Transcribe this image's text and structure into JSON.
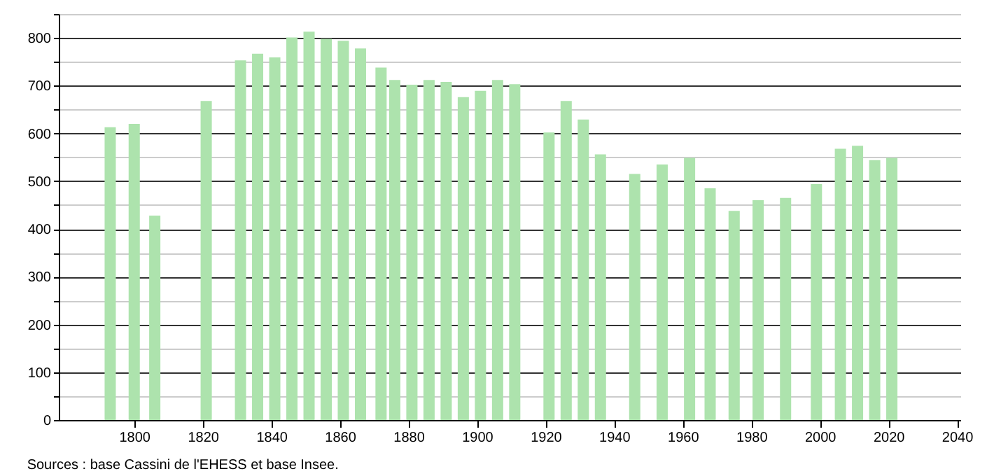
{
  "chart_data": {
    "type": "bar",
    "x": [
      1793,
      1800,
      1806,
      1821,
      1831,
      1836,
      1841,
      1846,
      1851,
      1856,
      1861,
      1866,
      1872,
      1876,
      1881,
      1886,
      1891,
      1896,
      1901,
      1906,
      1911,
      1921,
      1926,
      1931,
      1936,
      1946,
      1954,
      1962,
      1968,
      1975,
      1982,
      1990,
      1999,
      2006,
      2011,
      2016,
      2021
    ],
    "values": [
      613,
      620,
      428,
      668,
      753,
      767,
      759,
      801,
      813,
      798,
      794,
      778,
      738,
      712,
      702,
      712,
      708,
      676,
      689,
      712,
      703,
      602,
      668,
      629,
      556,
      515,
      535,
      549,
      485,
      438,
      460,
      465,
      494,
      568,
      574,
      544,
      549
    ],
    "color": "#ade3ad",
    "xlim": [
      1778,
      2041
    ],
    "xticks": [
      1800,
      1820,
      1840,
      1860,
      1880,
      1900,
      1920,
      1940,
      1960,
      1980,
      2000,
      2020,
      2040
    ],
    "ylim": [
      0,
      850
    ],
    "yticks": [
      0,
      {
        "value": 50,
        "label": null
      },
      100,
      {
        "value": 150,
        "label": null
      },
      200,
      {
        "value": 250,
        "label": null
      },
      300,
      {
        "value": 350,
        "label": null
      },
      400,
      {
        "value": 450,
        "label": null
      },
      500,
      {
        "value": 550,
        "label": null
      },
      600,
      {
        "value": 650,
        "label": null
      },
      700,
      {
        "value": 750,
        "label": null
      },
      800,
      {
        "value": 850,
        "label": null
      }
    ],
    "grid": "y",
    "annotations": [
      "Sources : base Cassini de l'EHESS et base Insee."
    ]
  }
}
